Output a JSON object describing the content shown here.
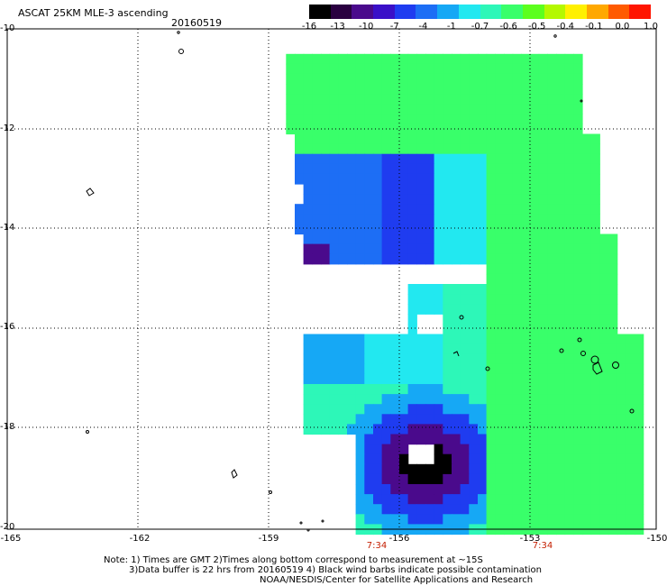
{
  "header": {
    "title": "ASCAT 25KM MLE-3 ascending",
    "date": "20160519"
  },
  "colorbar": {
    "tick_labels": [
      "-16",
      "-13",
      "-10",
      "-7",
      "-4",
      "-1",
      "-0.7",
      "-0.6",
      "-0.5",
      "-0.4",
      "-0.1",
      "0.0",
      "1.0"
    ],
    "colors": [
      "#000000",
      "#2a0040",
      "#4a0a8c",
      "#3a10c8",
      "#1f3cf0",
      "#1d6ef5",
      "#16a8f5",
      "#22e8f0",
      "#2df7b8",
      "#39ff6a",
      "#5cff1e",
      "#b4f800",
      "#fff000",
      "#ffa800",
      "#ff5a00",
      "#ff1500"
    ]
  },
  "map": {
    "lat_labels": [
      "-10",
      "-12",
      "-14",
      "-16",
      "-18",
      "-20"
    ],
    "lon_labels": [
      "-165",
      "-162",
      "-159",
      "-156",
      "-153",
      "-150"
    ],
    "pass_times": [
      "7:34",
      "7:34"
    ]
  },
  "notes": {
    "line1": "Note: 1) Times are GMT 2)Times along bottom correspond to measurement at ~15S",
    "line2": "3)Data buffer is 22 hrs from 20160519 4) Black wind barbs indicate possible contamination",
    "line3": "NOAA/NESDIS/Center for Satellite Applications and Research"
  }
}
